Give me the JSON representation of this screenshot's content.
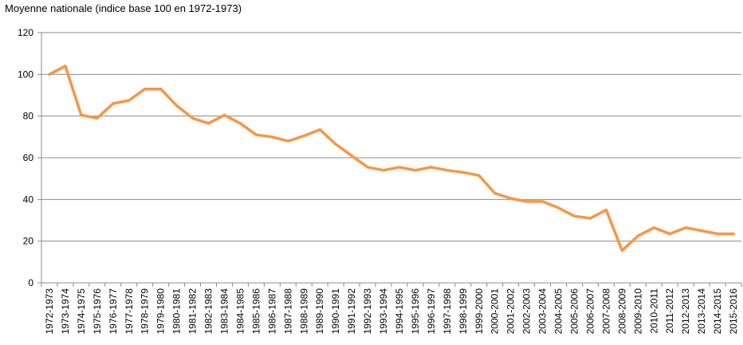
{
  "chart_data": {
    "type": "line",
    "title": "Moyenne nationale (indice base 100 en 1972-1973)",
    "xlabel": "",
    "ylabel": "",
    "ylim": [
      0,
      120
    ],
    "yticks": [
      0,
      20,
      40,
      60,
      80,
      100,
      120
    ],
    "grid": true,
    "legend": "none",
    "line_color": "#f79646",
    "categories": [
      "1972-1973",
      "1973-1974",
      "1974-1975",
      "1975-1976",
      "1976-1977",
      "1977-1978",
      "1978-1979",
      "1979-1980",
      "1980-1981",
      "1981-1982",
      "1982-1983",
      "1983-1984",
      "1984-1985",
      "1985-1986",
      "1986-1987",
      "1987-1988",
      "1988-1989",
      "1989-1990",
      "1990-1991",
      "1991-1992",
      "1992-1993",
      "1993-1994",
      "1994-1995",
      "1995-1996",
      "1996-1997",
      "1997-1998",
      "1998-1999",
      "1999-2000",
      "2000-2001",
      "2001-2002",
      "2002-2003",
      "2003-2004",
      "2004-2005",
      "2005-2006",
      "2006-2007",
      "2007-2008",
      "2008-2009",
      "2009-2010",
      "2010-2011",
      "2011-2012",
      "2012-2013",
      "2013-2014",
      "2014-2015",
      "2015-2016"
    ],
    "series": [
      {
        "values": [
          100,
          104,
          80.5,
          79,
          86,
          87.5,
          93,
          93,
          85,
          79,
          76.5,
          80.5,
          76.5,
          71,
          70,
          68,
          70.5,
          73.5,
          66.5,
          61,
          55.5,
          54,
          55.5,
          54,
          55.5,
          54,
          53,
          51.5,
          43,
          40.5,
          39,
          39,
          36,
          32,
          31,
          35,
          15.5,
          22.5,
          26.5,
          23.5,
          26.5,
          25,
          23.5,
          23.5
        ]
      }
    ]
  }
}
